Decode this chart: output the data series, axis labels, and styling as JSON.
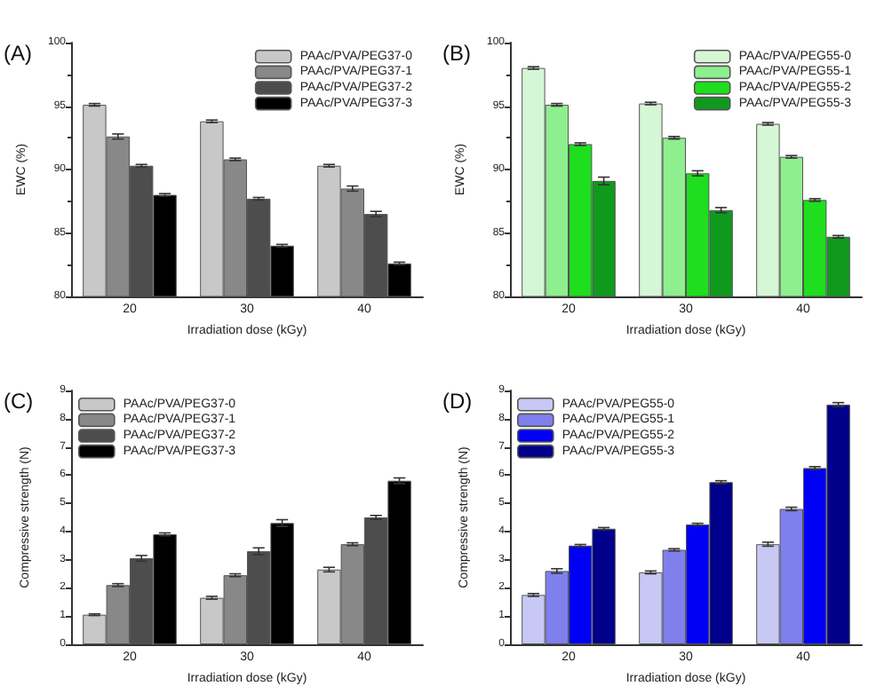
{
  "chart_data": [
    {
      "type": "bar",
      "annotations": [
        "(A)"
      ],
      "xlabel": "Irradiation dose (kGy)",
      "ylabel": "EWC (%)",
      "categories": [
        "20",
        "30",
        "40"
      ],
      "ylim": [
        80,
        100
      ],
      "yticks": [
        80,
        85,
        90,
        95,
        100
      ],
      "grid": false,
      "legend": "top right",
      "series": [
        {
          "name": "PAAc/PVA/PEG37-0",
          "color": "#c8c8c8",
          "values": [
            95.1,
            93.8,
            90.3
          ],
          "errors": [
            0.1,
            0.1,
            0.1
          ]
        },
        {
          "name": "PAAc/PVA/PEG37-1",
          "color": "#888888",
          "values": [
            92.6,
            90.8,
            88.5
          ],
          "errors": [
            0.2,
            0.1,
            0.2
          ]
        },
        {
          "name": "PAAc/PVA/PEG37-2",
          "color": "#4d4d4d",
          "values": [
            90.3,
            87.7,
            86.5
          ],
          "errors": [
            0.1,
            0.1,
            0.2
          ]
        },
        {
          "name": "PAAc/PVA/PEG37-3",
          "color": "#000000",
          "values": [
            88.0,
            84.0,
            82.6
          ],
          "errors": [
            0.1,
            0.1,
            0.1
          ]
        }
      ]
    },
    {
      "type": "bar",
      "annotations": [
        "(B)"
      ],
      "xlabel": "Irradiation dose (kGy)",
      "ylabel": "EWC (%)",
      "categories": [
        "20",
        "30",
        "40"
      ],
      "ylim": [
        80,
        100
      ],
      "yticks": [
        80,
        85,
        90,
        95,
        100
      ],
      "grid": false,
      "legend": "top right",
      "series": [
        {
          "name": "PAAc/PVA/PEG55-0",
          "color": "#d6f7d6",
          "values": [
            98.0,
            95.2,
            93.6
          ],
          "errors": [
            0.1,
            0.1,
            0.1
          ]
        },
        {
          "name": "PAAc/PVA/PEG55-1",
          "color": "#8eef8e",
          "values": [
            95.1,
            92.5,
            91.0
          ],
          "errors": [
            0.1,
            0.1,
            0.1
          ]
        },
        {
          "name": "PAAc/PVA/PEG55-2",
          "color": "#1ede1e",
          "values": [
            92.0,
            89.7,
            87.6
          ],
          "errors": [
            0.1,
            0.2,
            0.1
          ]
        },
        {
          "name": "PAAc/PVA/PEG55-3",
          "color": "#0f9a1e",
          "values": [
            89.1,
            86.8,
            84.7
          ],
          "errors": [
            0.3,
            0.2,
            0.1
          ]
        }
      ]
    },
    {
      "type": "bar",
      "annotations": [
        "(C)"
      ],
      "xlabel": "Irradiation dose (kGy)",
      "ylabel": "Compressive strength (N)",
      "categories": [
        "20",
        "30",
        "40"
      ],
      "ylim": [
        0,
        9
      ],
      "yticks": [
        0,
        1,
        2,
        3,
        4,
        5,
        6,
        7,
        8,
        9
      ],
      "grid": false,
      "legend": "top left",
      "series": [
        {
          "name": "PAAc/PVA/PEG37-0",
          "color": "#c8c8c8",
          "values": [
            1.05,
            1.65,
            2.65
          ],
          "errors": [
            0.03,
            0.05,
            0.08
          ]
        },
        {
          "name": "PAAc/PVA/PEG37-1",
          "color": "#888888",
          "values": [
            2.1,
            2.45,
            3.55
          ],
          "errors": [
            0.05,
            0.05,
            0.05
          ]
        },
        {
          "name": "PAAc/PVA/PEG37-2",
          "color": "#4d4d4d",
          "values": [
            3.05,
            3.3,
            4.5
          ],
          "errors": [
            0.1,
            0.12,
            0.07
          ]
        },
        {
          "name": "PAAc/PVA/PEG37-3",
          "color": "#000000",
          "values": [
            3.9,
            4.3,
            5.8
          ],
          "errors": [
            0.05,
            0.12,
            0.1
          ]
        }
      ]
    },
    {
      "type": "bar",
      "annotations": [
        "(D)"
      ],
      "xlabel": "Irradiation dose (kGy)",
      "ylabel": "Compressive strength (N)",
      "categories": [
        "20",
        "30",
        "40"
      ],
      "ylim": [
        0,
        9
      ],
      "yticks": [
        0,
        1,
        2,
        3,
        4,
        5,
        6,
        7,
        8,
        9
      ],
      "grid": false,
      "legend": "top left",
      "series": [
        {
          "name": "PAAc/PVA/PEG55-0",
          "color": "#c8c8f5",
          "values": [
            1.75,
            2.55,
            3.55
          ],
          "errors": [
            0.05,
            0.05,
            0.07
          ]
        },
        {
          "name": "PAAc/PVA/PEG55-1",
          "color": "#7f7fee",
          "values": [
            2.6,
            3.35,
            4.8
          ],
          "errors": [
            0.08,
            0.04,
            0.06
          ]
        },
        {
          "name": "PAAc/PVA/PEG55-2",
          "color": "#0000f5",
          "values": [
            3.5,
            4.25,
            6.25
          ],
          "errors": [
            0.04,
            0.04,
            0.05
          ]
        },
        {
          "name": "PAAc/PVA/PEG55-3",
          "color": "#00008b",
          "values": [
            4.1,
            5.75,
            8.5
          ],
          "errors": [
            0.04,
            0.05,
            0.07
          ]
        }
      ]
    }
  ]
}
